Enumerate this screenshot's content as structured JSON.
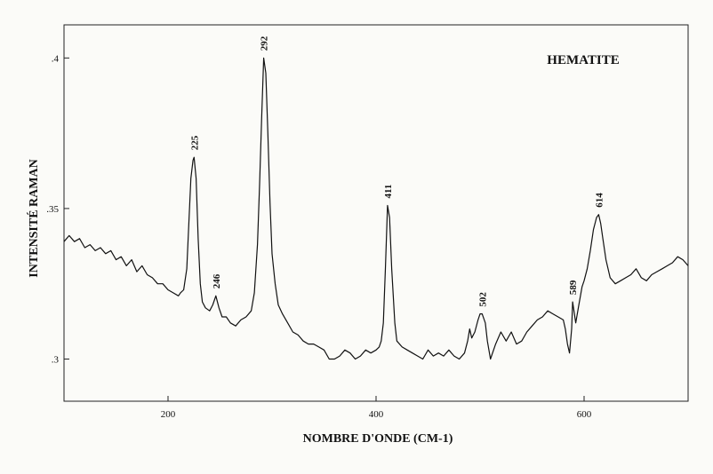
{
  "chart_data": {
    "type": "line",
    "title": "HEMATITE",
    "xlabel": "NOMBRE D'ONDE (CM-1)",
    "ylabel": "INTENSITÉ RAMAN",
    "xlim": [
      100,
      700
    ],
    "ylim": [
      0.286,
      0.411
    ],
    "x_ticks": [
      200,
      400,
      600
    ],
    "x_tick_labels": [
      "200",
      "400",
      "600"
    ],
    "y_ticks": [
      0.3,
      0.35,
      0.4
    ],
    "y_tick_labels": [
      ".3",
      ".35",
      ".4"
    ],
    "grid": false,
    "legend": "none",
    "line_color": "#111111",
    "peaks": [
      {
        "x": 225,
        "y": 0.367,
        "label": "225"
      },
      {
        "x": 246,
        "y": 0.321,
        "label": "246"
      },
      {
        "x": 292,
        "y": 0.4,
        "label": "292"
      },
      {
        "x": 411,
        "y": 0.351,
        "label": "411"
      },
      {
        "x": 502,
        "y": 0.315,
        "label": "502"
      },
      {
        "x": 589,
        "y": 0.319,
        "label": "589"
      },
      {
        "x": 614,
        "y": 0.348,
        "label": "614"
      }
    ],
    "series": [
      {
        "x": [
          100,
          105,
          110,
          115,
          120,
          125,
          130,
          135,
          140,
          145,
          150,
          155,
          160,
          165,
          170,
          175,
          180,
          185,
          190,
          195,
          200,
          205,
          210,
          212,
          215,
          218,
          220,
          222,
          224,
          225,
          227,
          229,
          231,
          233,
          236,
          240,
          243,
          246,
          249,
          252,
          256,
          260,
          265,
          270,
          275,
          280,
          283,
          286,
          288,
          290,
          292,
          294,
          296,
          298,
          300,
          303,
          306,
          310,
          315,
          320,
          325,
          330,
          335,
          340,
          345,
          350,
          355,
          360,
          365,
          370,
          375,
          380,
          385,
          390,
          395,
          400,
          403,
          405,
          407,
          409,
          411,
          413,
          415,
          418,
          420,
          425,
          430,
          435,
          440,
          445,
          450,
          455,
          460,
          465,
          470,
          475,
          480,
          485,
          488,
          490,
          492,
          495,
          498,
          500,
          502,
          505,
          507,
          510,
          515,
          520,
          525,
          530,
          535,
          540,
          545,
          550,
          555,
          560,
          565,
          570,
          575,
          580,
          582,
          584,
          586,
          588,
          589,
          592,
          595,
          598,
          600,
          603,
          606,
          609,
          612,
          614,
          616,
          618,
          621,
          625,
          630,
          635,
          640,
          645,
          650,
          655,
          660,
          665,
          670,
          675,
          680,
          685,
          690,
          695,
          700
        ],
        "y": [
          0.339,
          0.341,
          0.339,
          0.34,
          0.337,
          0.338,
          0.336,
          0.337,
          0.335,
          0.336,
          0.333,
          0.334,
          0.331,
          0.333,
          0.329,
          0.331,
          0.328,
          0.327,
          0.325,
          0.325,
          0.323,
          0.322,
          0.321,
          0.322,
          0.323,
          0.33,
          0.345,
          0.36,
          0.366,
          0.367,
          0.36,
          0.34,
          0.325,
          0.319,
          0.317,
          0.316,
          0.318,
          0.321,
          0.317,
          0.314,
          0.314,
          0.312,
          0.311,
          0.313,
          0.314,
          0.316,
          0.322,
          0.338,
          0.358,
          0.38,
          0.4,
          0.395,
          0.375,
          0.352,
          0.335,
          0.325,
          0.318,
          0.315,
          0.312,
          0.309,
          0.308,
          0.306,
          0.305,
          0.305,
          0.304,
          0.303,
          0.3,
          0.3,
          0.301,
          0.303,
          0.302,
          0.3,
          0.301,
          0.303,
          0.302,
          0.303,
          0.304,
          0.306,
          0.312,
          0.33,
          0.351,
          0.347,
          0.33,
          0.312,
          0.306,
          0.304,
          0.303,
          0.302,
          0.301,
          0.3,
          0.303,
          0.301,
          0.302,
          0.301,
          0.303,
          0.301,
          0.3,
          0.302,
          0.306,
          0.31,
          0.307,
          0.309,
          0.313,
          0.315,
          0.315,
          0.312,
          0.306,
          0.3,
          0.305,
          0.309,
          0.306,
          0.309,
          0.305,
          0.306,
          0.309,
          0.311,
          0.313,
          0.314,
          0.316,
          0.315,
          0.314,
          0.313,
          0.31,
          0.305,
          0.302,
          0.31,
          0.319,
          0.312,
          0.318,
          0.324,
          0.326,
          0.33,
          0.336,
          0.343,
          0.347,
          0.348,
          0.345,
          0.34,
          0.333,
          0.327,
          0.325,
          0.326,
          0.327,
          0.328,
          0.33,
          0.327,
          0.326,
          0.328,
          0.329,
          0.33,
          0.331,
          0.332,
          0.334,
          0.333,
          0.331
        ]
      }
    ]
  }
}
